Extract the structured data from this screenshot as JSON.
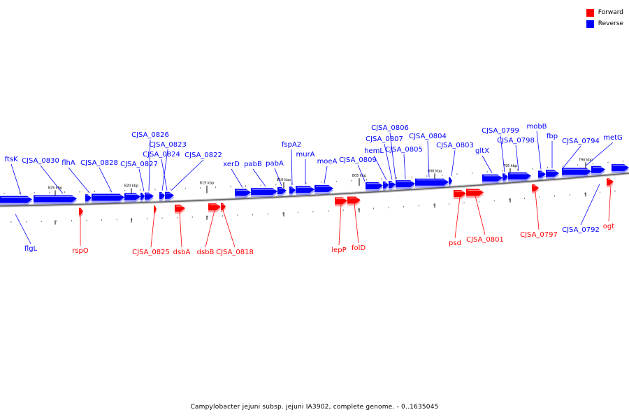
{
  "legend": {
    "forward": {
      "label": "Forward",
      "color": "#ff0000"
    },
    "reverse": {
      "label": "Reverse",
      "color": "#0000ff"
    }
  },
  "caption": "Campylobacter jejuni subsp. jejuni IA3902, complete genome. - 0..1635045",
  "scale_ticks": [
    "825 kbp",
    "820 kbp",
    "815 kbp",
    "810 kbp",
    "805 kbp",
    "800 kbp",
    "795 kbp",
    "790 kbp"
  ],
  "genes": {
    "reverse": [
      "ftsK",
      "CJSA_0830",
      "flhA",
      "CJSA_0828",
      "CJSA_0827",
      "CJSA_0826",
      "CJSA_0823",
      "CJSA_0824",
      "CJSA_0822",
      "xerD",
      "pabB",
      "pabA",
      "fspA2",
      "murA",
      "moeA",
      "CJSA_0809",
      "hemL",
      "CJSA_0807",
      "CJSA_0806",
      "CJSA_0805",
      "CJSA_0804",
      "CJSA_0803",
      "gltX",
      "CJSA_0799",
      "CJSA_0798",
      "mobB",
      "fbp",
      "CJSA_0794",
      "metG",
      "flgL",
      "CJSA_0792"
    ],
    "forward": [
      "rspO",
      "CJSA_0825",
      "dsbA",
      "dsbB",
      "CJSA_0818",
      "lepP",
      "folD",
      "psd",
      "CJSA_0801",
      "CJSA_0797",
      "ogt"
    ]
  }
}
